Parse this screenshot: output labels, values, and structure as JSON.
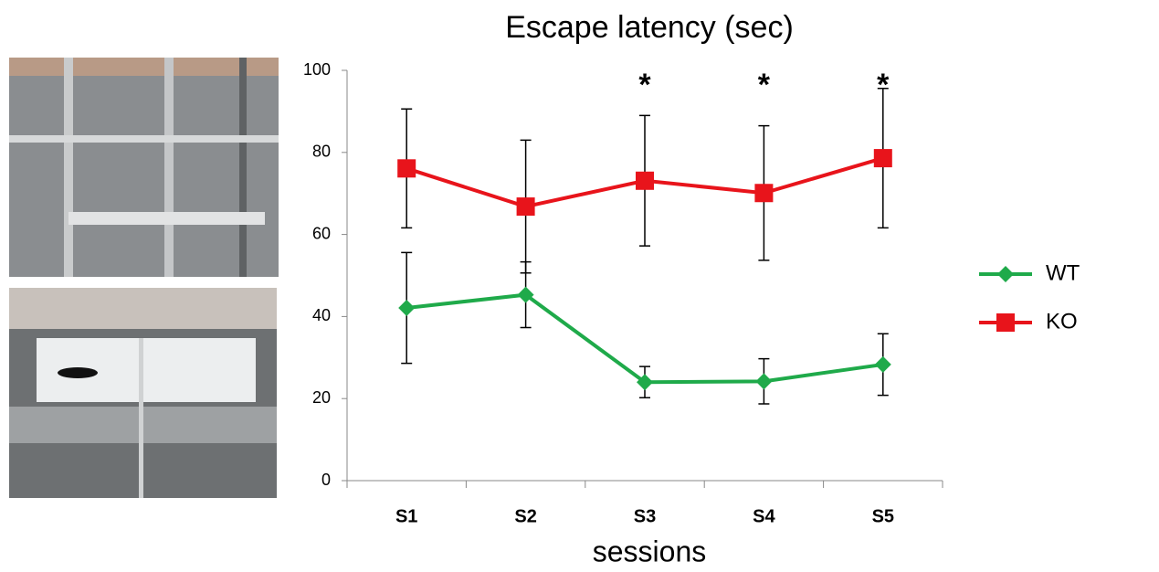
{
  "chart_data": {
    "type": "line",
    "title": "Escape latency (sec)",
    "x_label": "sessions",
    "categories": [
      "S1",
      "S2",
      "S3",
      "S4",
      "S5"
    ],
    "series": [
      {
        "name": "WT",
        "color": "#1faa4a",
        "marker": "diamond",
        "values": [
          42.1,
          45.3,
          24.0,
          24.2,
          28.3
        ],
        "errors": [
          13.5,
          8,
          3.8,
          5.5,
          7.5
        ]
      },
      {
        "name": "KO",
        "color": "#e8141b",
        "marker": "square",
        "values": [
          76.1,
          66.8,
          73.1,
          70.1,
          78.6
        ],
        "errors": [
          14.5,
          16.2,
          15.9,
          16.4,
          17
        ]
      }
    ],
    "annotations": [
      {
        "text": "*",
        "category": "S3"
      },
      {
        "text": "*",
        "category": "S4"
      },
      {
        "text": "*",
        "category": "S5"
      }
    ],
    "ylim": [
      0,
      100
    ],
    "yticks": [
      0,
      20,
      40,
      60,
      80,
      100
    ],
    "legend": "right"
  }
}
